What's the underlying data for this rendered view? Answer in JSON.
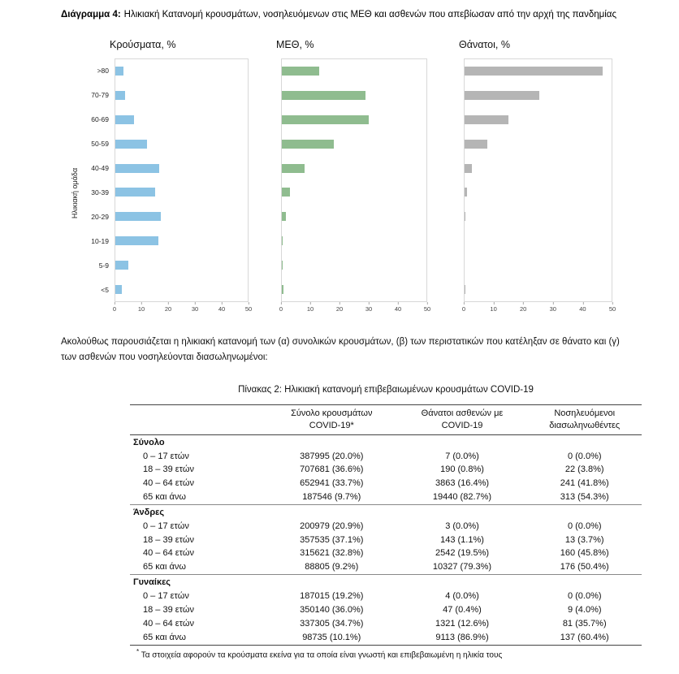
{
  "header": {
    "label": "Διάγραμμα 4:",
    "title": "Ηλικιακή Κατανομή κρουσμάτων, νοσηλευόμενων στις ΜΕΘ και ασθενών που απεβίωσαν από την αρχή της πανδημίας"
  },
  "y_axis_title": "Ηλικιακή ομάδα",
  "chart_data": [
    {
      "type": "bar",
      "orientation": "horizontal",
      "title": "Κρούσματα, %",
      "categories": [
        ">80",
        "70-79",
        "60-69",
        "50-59",
        "40-49",
        "30-39",
        "20-29",
        "10-19",
        "5-9",
        "<5"
      ],
      "values": [
        3,
        3.7,
        7,
        12,
        16.6,
        15,
        17.3,
        16.4,
        4.9,
        2.5
      ],
      "xlim": [
        0,
        50
      ],
      "xticks": [
        0,
        10,
        20,
        30,
        40,
        50
      ],
      "color": "#8cc3e4",
      "grid": false,
      "legend": false
    },
    {
      "type": "bar",
      "orientation": "horizontal",
      "title": "ΜΕΘ, %",
      "categories": [
        ">80",
        "70-79",
        "60-69",
        "50-59",
        "40-49",
        "30-39",
        "20-29",
        "10-19",
        "5-9",
        "<5"
      ],
      "values": [
        13,
        29,
        30,
        18,
        8,
        2.7,
        1.4,
        0.3,
        0.3,
        0.5
      ],
      "xlim": [
        0,
        50
      ],
      "xticks": [
        0,
        10,
        20,
        30,
        40,
        50
      ],
      "color": "#8fbc8f",
      "grid": false,
      "legend": false
    },
    {
      "type": "bar",
      "orientation": "horizontal",
      "title": "Θάνατοι, %",
      "categories": [
        ">80",
        "70-79",
        "60-69",
        "50-59",
        "40-49",
        "30-39",
        "20-29",
        "10-19",
        "5-9",
        "<5"
      ],
      "values": [
        47,
        25.5,
        15,
        7.6,
        2.4,
        0.7,
        0.2,
        0,
        0,
        0.1
      ],
      "xlim": [
        0,
        50
      ],
      "xticks": [
        0,
        10,
        20,
        30,
        40,
        50
      ],
      "color": "#b5b5b5",
      "grid": false,
      "legend": false
    }
  ],
  "paragraph": "Ακολούθως παρουσιάζεται η ηλικιακή κατανομή των (α) συνολικών κρουσμάτων, (β) των περιστατικών που κατέληξαν σε θάνατο και (γ) των ασθενών που νοσηλεύονται διασωληνωμένοι:",
  "table": {
    "title": "Πίνακας 2: Ηλικιακή κατανομή επιβεβαιωμένων κρουσμάτων COVID-19",
    "columns": [
      "",
      "Σύνολο κρουσμάτων\nCOVID-19*",
      "Θάνατοι ασθενών με\nCOVID-19",
      "Νοσηλευόμενοι\nδιασωληνωθέντες"
    ],
    "sections": [
      {
        "label": "Σύνολο",
        "rows": [
          {
            "age": "0 – 17 ετών",
            "cases": "387995 (20.0%)",
            "deaths": "7 (0.0%)",
            "intubated": "0 (0.0%)"
          },
          {
            "age": "18 – 39 ετών",
            "cases": "707681 (36.6%)",
            "deaths": "190 (0.8%)",
            "intubated": "22 (3.8%)"
          },
          {
            "age": "40 – 64 ετών",
            "cases": "652941 (33.7%)",
            "deaths": "3863 (16.4%)",
            "intubated": "241 (41.8%)"
          },
          {
            "age": "65 και άνω",
            "cases": "187546 (9.7%)",
            "deaths": "19440 (82.7%)",
            "intubated": "313 (54.3%)"
          }
        ]
      },
      {
        "label": "Άνδρες",
        "rows": [
          {
            "age": "0 – 17 ετών",
            "cases": "200979 (20.9%)",
            "deaths": "3 (0.0%)",
            "intubated": "0 (0.0%)"
          },
          {
            "age": "18 – 39 ετών",
            "cases": "357535 (37.1%)",
            "deaths": "143 (1.1%)",
            "intubated": "13 (3.7%)"
          },
          {
            "age": "40 – 64 ετών",
            "cases": "315621 (32.8%)",
            "deaths": "2542 (19.5%)",
            "intubated": "160 (45.8%)"
          },
          {
            "age": "65 και άνω",
            "cases": "88805 (9.2%)",
            "deaths": "10327 (79.3%)",
            "intubated": "176 (50.4%)"
          }
        ]
      },
      {
        "label": "Γυναίκες",
        "rows": [
          {
            "age": "0 – 17 ετών",
            "cases": "187015 (19.2%)",
            "deaths": "4 (0.0%)",
            "intubated": "0 (0.0%)"
          },
          {
            "age": "18 – 39 ετών",
            "cases": "350140 (36.0%)",
            "deaths": "47 (0.4%)",
            "intubated": "9 (4.0%)"
          },
          {
            "age": "40 – 64 ετών",
            "cases": "337305 (34.7%)",
            "deaths": "1321 (12.6%)",
            "intubated": "81 (35.7%)"
          },
          {
            "age": "65 και άνω",
            "cases": "98735 (10.1%)",
            "deaths": "9113 (86.9%)",
            "intubated": "137 (60.4%)"
          }
        ]
      }
    ],
    "footnote_marker": "*",
    "footnote_text": "Τα στοιχεία αφορούν τα κρούσματα εκείνα για τα οποία είναι γνωστή και επιβεβαιωμένη η ηλικία τους"
  }
}
